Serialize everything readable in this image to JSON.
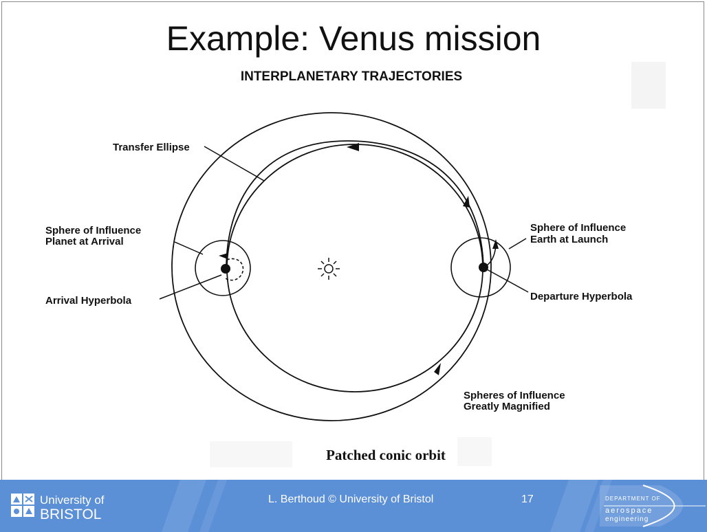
{
  "slide": {
    "title": "Example: Venus mission",
    "diagram_heading": "INTERPLANETARY TRAJECTORIES",
    "caption": "Patched conic orbit"
  },
  "labels": {
    "transfer_ellipse": "Transfer Ellipse",
    "soi_arrival_line1": "Sphere of Influence",
    "soi_arrival_line2": "Planet at Arrival",
    "arrival_hyperbola": "Arrival Hyperbola",
    "soi_launch_line1": "Sphere of Influence",
    "soi_launch_line2": "Earth at Launch",
    "departure_hyperbola": "Departure Hyperbola",
    "spheres_line1": "Spheres of Influence",
    "spheres_line2": "Greatly Magnified"
  },
  "footer": {
    "university_line1": "University of",
    "university_line2": "BRISTOL",
    "credit": "L. Berthoud © University of Bristol",
    "page_number": "17",
    "department_line1": "DEPARTMENT OF",
    "department_line2": "aerospace",
    "department_line3": "engineering"
  },
  "colors": {
    "footer_bg": "#5b8fd6",
    "footer_stripe": "#7aa6e2",
    "ink": "#111111"
  }
}
